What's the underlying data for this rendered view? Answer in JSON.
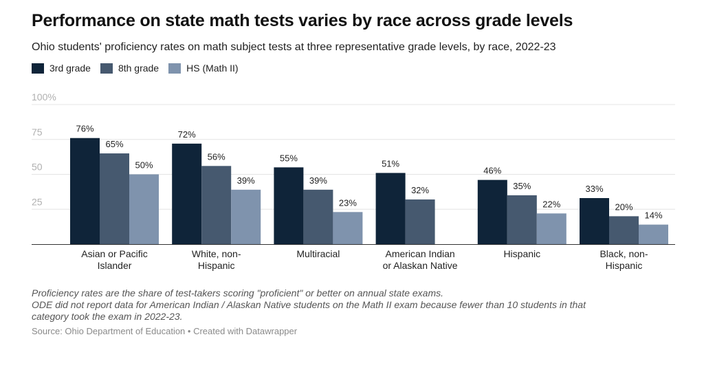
{
  "chart_data": {
    "type": "bar",
    "title": "Performance on state math tests varies by race across grade levels",
    "subtitle": "Ohio students' proficiency rates on math subject tests at three representative grade levels, by race, 2022-23",
    "categories": [
      [
        "Asian or Pacific",
        "Islander"
      ],
      [
        "White, non-",
        "Hispanic"
      ],
      [
        "Multiracial"
      ],
      [
        "American Indian",
        "or Alaskan Native"
      ],
      [
        "Hispanic"
      ],
      [
        "Black, non-",
        "Hispanic"
      ]
    ],
    "series": [
      {
        "name": "3rd grade",
        "color": "#0f2439",
        "values": [
          76,
          72,
          55,
          51,
          46,
          33
        ]
      },
      {
        "name": "8th grade",
        "color": "#46596f",
        "values": [
          65,
          56,
          39,
          32,
          35,
          20
        ]
      },
      {
        "name": "HS (Math II)",
        "color": "#7f93ad",
        "values": [
          50,
          39,
          23,
          null,
          22,
          14
        ]
      }
    ],
    "data_label_suffix": "%",
    "ylim": [
      0,
      100
    ],
    "yticks": [
      {
        "value": 25,
        "label": "25"
      },
      {
        "value": 50,
        "label": "50"
      },
      {
        "value": 75,
        "label": "75"
      },
      {
        "value": 100,
        "label": "100%"
      }
    ],
    "grid": true,
    "legend_position": "top-left"
  },
  "notes": [
    "Proficiency rates are the share of test-takers scoring \"proficient\" or better on annual state exams.",
    "ODE did not report data for American Indian / Alaskan Native students on the Math II exam because fewer than 10 students in that",
    "category took the exam in 2022-23."
  ],
  "source": "Source: Ohio Department of Education • Created with Datawrapper"
}
